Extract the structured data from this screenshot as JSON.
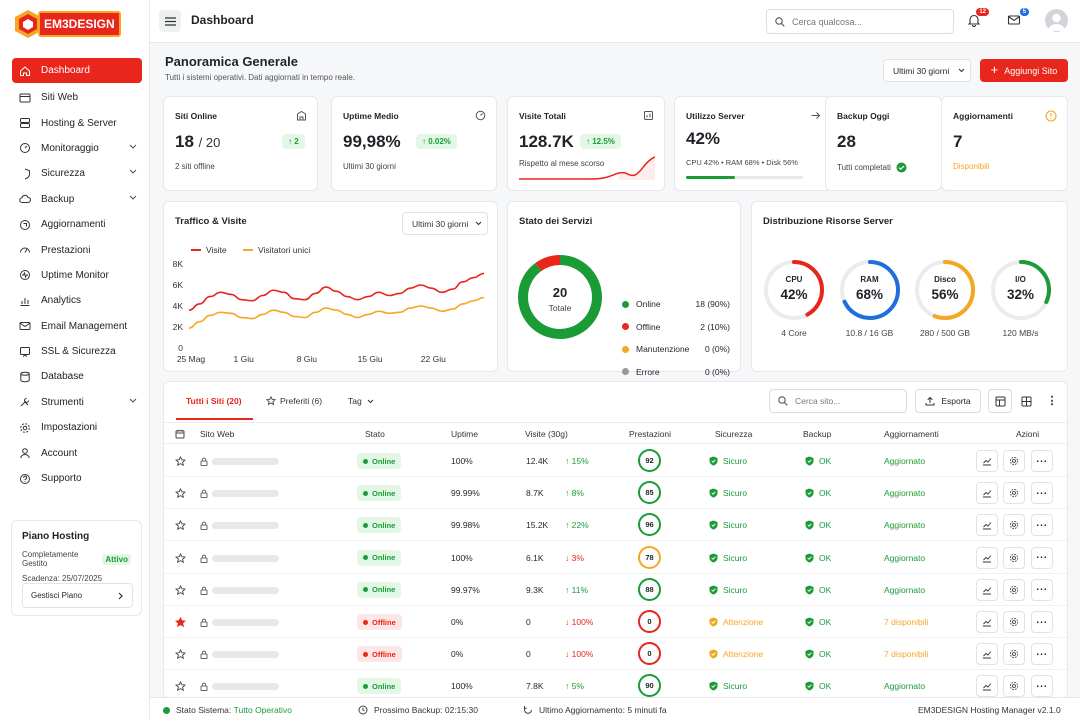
{
  "brand": {
    "logo_text": "EM3DESIGN"
  },
  "sidebar": {
    "items": [
      {
        "label": "Dashboard",
        "icon": "home-icon",
        "active": true
      },
      {
        "label": "Siti Web",
        "icon": "browser-icon"
      },
      {
        "label": "Hosting & Server",
        "icon": "server-icon"
      },
      {
        "label": "Monitoraggio",
        "icon": "gauge-icon",
        "expandable": true
      },
      {
        "label": "Sicurezza",
        "icon": "shield-icon",
        "expandable": true
      },
      {
        "label": "Backup",
        "icon": "cloud-icon",
        "expandable": true
      },
      {
        "label": "Aggiornamenti",
        "icon": "refresh-icon"
      },
      {
        "label": "Prestazioni",
        "icon": "speedometer-icon"
      },
      {
        "label": "Uptime Monitor",
        "icon": "pulse-icon"
      },
      {
        "label": "Analytics",
        "icon": "bar-chart-icon"
      },
      {
        "label": "Email Management",
        "icon": "mail-icon"
      },
      {
        "label": "SSL & Sicurezza",
        "icon": "certificate-icon"
      },
      {
        "label": "Database",
        "icon": "database-icon"
      },
      {
        "label": "Strumenti",
        "icon": "tools-icon",
        "expandable": true
      },
      {
        "label": "Impostazioni",
        "icon": "gear-icon"
      },
      {
        "label": "Account",
        "icon": "user-icon"
      },
      {
        "label": "Supporto",
        "icon": "help-icon"
      }
    ],
    "plan": {
      "title": "Piano Hosting",
      "tier": "Completamente Gestito",
      "badge": "Attivo",
      "expiry": "Scadenza: 25/07/2025",
      "button": "Gestisci Piano"
    }
  },
  "topbar": {
    "title": "Dashboard",
    "search_placeholder": "Cerca qualcosa...",
    "notifications_count": "12",
    "messages_count": "5"
  },
  "overview": {
    "title": "Panoramica Generale",
    "subtitle": "Tutti i sistemi operativi. Dati aggiornati in tempo reale.",
    "range": "Ultimi 30 giorni",
    "add_button": "Aggiungi Sito"
  },
  "kpis": [
    {
      "title": "Siti Online",
      "value": "18",
      "value_suffix": "/ 20",
      "delta": "2",
      "sub": "2 siti offline"
    },
    {
      "title": "Uptime Medio",
      "value": "99,98%",
      "delta": "0.02%",
      "sub": "Ultimi 30 giorni"
    },
    {
      "title": "Visite Totali",
      "value": "128.7K",
      "delta": "12.5%",
      "sub": "Rispetto al mese scorso"
    },
    {
      "title": "Utilizzo Server",
      "value": "42%",
      "sub": "CPU 42% • RAM 68% • Disk 56%",
      "progress": 42
    },
    {
      "title": "Backup Oggi",
      "value": "28",
      "sub": "Tutti completati"
    },
    {
      "title": "Aggiornamenti",
      "value": "7",
      "sub": "Disponibili"
    }
  ],
  "traffic": {
    "title": "Traffico & Visite",
    "range": "Ultimi 30 giorni"
  },
  "chart_data": {
    "type": "line",
    "x": [
      "25 Mag",
      "",
      "",
      "",
      "",
      "1 Giu",
      "",
      "",
      "",
      "",
      "",
      "8 Giu",
      "",
      "",
      "",
      "",
      "",
      "15 Giu",
      "",
      "",
      "",
      "",
      "",
      "22 Giu",
      "",
      "",
      "",
      "",
      ""
    ],
    "tick_labels": [
      "25 Mag",
      "1 Giu",
      "8 Giu",
      "15 Giu",
      "22 Giu"
    ],
    "y_ticks": [
      "0",
      "2K",
      "4K",
      "6K",
      "8K"
    ],
    "ylim": [
      0,
      8000
    ],
    "legend": "top",
    "series": [
      {
        "name": "Visite",
        "color": "#e8261c",
        "values": [
          3600,
          4200,
          4900,
          5300,
          5100,
          4600,
          4500,
          5000,
          5500,
          5300,
          4700,
          4600,
          5200,
          5800,
          5400,
          4900,
          4600,
          4900,
          5300,
          5000,
          5200,
          5700,
          6000,
          5700,
          5300,
          5600,
          6300,
          6700,
          7100
        ]
      },
      {
        "name": "Visitatori unici",
        "color": "#f5a623",
        "values": [
          1900,
          2500,
          3100,
          3400,
          3300,
          2900,
          2800,
          3200,
          3600,
          3400,
          3000,
          2900,
          3400,
          3800,
          3600,
          3200,
          2900,
          3200,
          3500,
          3300,
          3400,
          3800,
          4000,
          3800,
          3500,
          3700,
          4200,
          4500,
          4800
        ]
      }
    ]
  },
  "services": {
    "title": "Stato dei Servizi",
    "total": "20",
    "total_label": "Totale",
    "items": [
      {
        "label": "Online",
        "value": "18 (90%)",
        "color": "#1a9b35",
        "count": 18
      },
      {
        "label": "Offline",
        "value": "2 (10%)",
        "color": "#e8261c",
        "count": 2
      },
      {
        "label": "Manutenzione",
        "value": "0 (0%)",
        "color": "#f5a623",
        "count": 0
      },
      {
        "label": "Errore",
        "value": "0 (0%)",
        "color": "#999999",
        "count": 0
      }
    ]
  },
  "resources": {
    "title": "Distribuzione Risorse Server",
    "gauges": [
      {
        "label": "CPU",
        "value": "42%",
        "pct": 42,
        "sub": "4 Core",
        "color": "#e8261c"
      },
      {
        "label": "RAM",
        "value": "68%",
        "pct": 68,
        "sub": "10.8 / 16 GB",
        "color": "#1e6fd9"
      },
      {
        "label": "Disco",
        "value": "56%",
        "pct": 56,
        "sub": "280 / 500 GB",
        "color": "#f5a623"
      },
      {
        "label": "I/O",
        "value": "32%",
        "pct": 32,
        "sub": "120 MB/s",
        "color": "#1a9b35"
      }
    ]
  },
  "sites": {
    "tabs": [
      "Tutti i Siti (20)",
      "Preferiti (6)",
      "Tag"
    ],
    "search_placeholder": "Cerca sito...",
    "export": "Esporta",
    "columns": [
      "Sito Web",
      "Stato",
      "Uptime",
      "Visite (30g)",
      "Prestazioni",
      "Sicurezza",
      "Backup",
      "Aggiornamenti",
      "Azioni"
    ],
    "rows": [
      {
        "fav": false,
        "status": "Online",
        "uptime": "100%",
        "visits": "12.4K",
        "trend": "15%",
        "up": true,
        "perf": "92",
        "perf_color": "#1a9b35",
        "security": "Sicuro",
        "backup": "OK",
        "updates": "Aggiornato"
      },
      {
        "fav": false,
        "status": "Online",
        "uptime": "99.99%",
        "visits": "8.7K",
        "trend": "8%",
        "up": true,
        "perf": "85",
        "perf_color": "#1a9b35",
        "security": "Sicuro",
        "backup": "OK",
        "updates": "Aggiornato"
      },
      {
        "fav": false,
        "status": "Online",
        "uptime": "99.98%",
        "visits": "15.2K",
        "trend": "22%",
        "up": true,
        "perf": "96",
        "perf_color": "#1a9b35",
        "security": "Sicuro",
        "backup": "OK",
        "updates": "Aggiornato"
      },
      {
        "fav": false,
        "status": "Online",
        "uptime": "100%",
        "visits": "6.1K",
        "trend": "3%",
        "up": false,
        "perf": "78",
        "perf_color": "#f5a623",
        "security": "Sicuro",
        "backup": "OK",
        "updates": "Aggiornato"
      },
      {
        "fav": false,
        "status": "Online",
        "uptime": "99.97%",
        "visits": "9.3K",
        "trend": "11%",
        "up": true,
        "perf": "88",
        "perf_color": "#1a9b35",
        "security": "Sicuro",
        "backup": "OK",
        "updates": "Aggiornato"
      },
      {
        "fav": true,
        "status": "Offline",
        "uptime": "0%",
        "visits": "0",
        "trend": "100%",
        "up": false,
        "perf": "0",
        "perf_color": "#e8261c",
        "security": "Attenzione",
        "backup": "OK",
        "updates": "7 disponibili"
      },
      {
        "fav": false,
        "status": "Offline",
        "uptime": "0%",
        "visits": "0",
        "trend": "100%",
        "up": false,
        "perf": "0",
        "perf_color": "#e8261c",
        "security": "Attenzione",
        "backup": "OK",
        "updates": "7 disponibili"
      },
      {
        "fav": false,
        "status": "Online",
        "uptime": "100%",
        "visits": "7.8K",
        "trend": "5%",
        "up": true,
        "perf": "90",
        "perf_color": "#1a9b35",
        "security": "Sicuro",
        "backup": "OK",
        "updates": "Aggiornato"
      }
    ]
  },
  "statusbar": {
    "system_label": "Stato Sistema:",
    "system_value": "Tutto Operativo",
    "backup": "Prossimo Backup: 02:15:30",
    "last_update": "Ultimo Aggiornamento: 5 minuti fa",
    "version": "EM3DESIGN Hosting Manager v2.1.0"
  }
}
